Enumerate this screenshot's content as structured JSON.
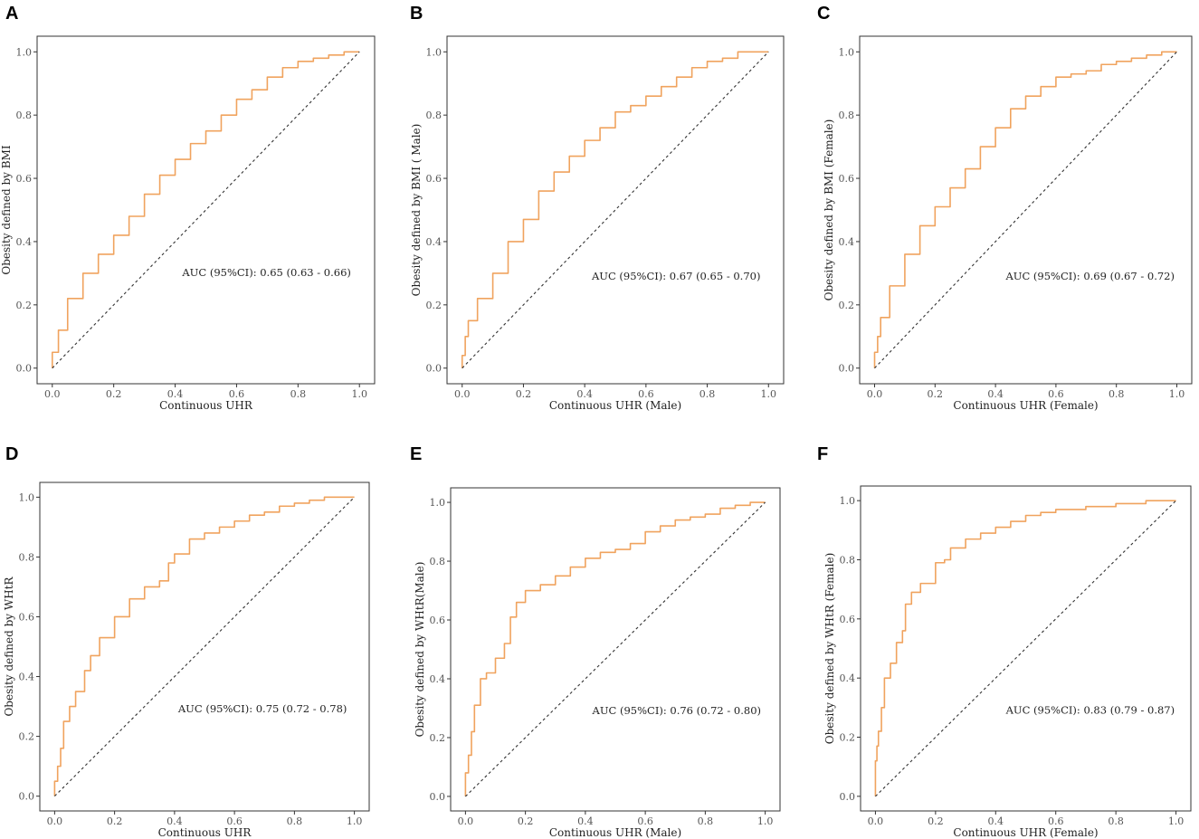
{
  "colors": {
    "roc": "#F0A35E",
    "diagonal": "#333333",
    "frame": "#333333"
  },
  "chart_data": [
    {
      "panel": "A",
      "type": "line",
      "xlabel": "Continuous UHR",
      "ylabel": "Obesity defined by BMI",
      "xlim": [
        0,
        1
      ],
      "ylim": [
        0,
        1
      ],
      "x_ticks": [
        "0.0",
        "0.2",
        "0.4",
        "0.6",
        "0.8",
        "1.0"
      ],
      "y_ticks": [
        "0.0",
        "0.2",
        "0.4",
        "0.6",
        "0.8",
        "1.0"
      ],
      "annotation": "AUC (95%CI): 0.65 (0.63 - 0.66)",
      "series": [
        {
          "name": "ROC",
          "x": [
            0,
            0.02,
            0.05,
            0.1,
            0.15,
            0.2,
            0.25,
            0.3,
            0.35,
            0.4,
            0.45,
            0.5,
            0.55,
            0.6,
            0.65,
            0.7,
            0.75,
            0.8,
            0.85,
            0.9,
            0.95,
            1.0
          ],
          "y": [
            0,
            0.05,
            0.12,
            0.22,
            0.3,
            0.36,
            0.42,
            0.48,
            0.55,
            0.61,
            0.66,
            0.71,
            0.75,
            0.8,
            0.85,
            0.88,
            0.92,
            0.95,
            0.97,
            0.98,
            0.99,
            1.0
          ]
        },
        {
          "name": "reference",
          "x": [
            0,
            1
          ],
          "y": [
            0,
            1
          ]
        }
      ]
    },
    {
      "panel": "B",
      "type": "line",
      "xlabel": "Continuous UHR (Male)",
      "ylabel": "Obesity defined by BMI ( Male)",
      "xlim": [
        0,
        1
      ],
      "ylim": [
        0,
        1
      ],
      "x_ticks": [
        "0.0",
        "0.2",
        "0.4",
        "0.6",
        "0.8",
        "1.0"
      ],
      "y_ticks": [
        "0.0",
        "0.2",
        "0.4",
        "0.6",
        "0.8",
        "1.0"
      ],
      "annotation": "AUC (95%CI): 0.67 (0.65 - 0.70)",
      "series": [
        {
          "name": "ROC",
          "x": [
            0,
            0.01,
            0.02,
            0.05,
            0.1,
            0.15,
            0.2,
            0.25,
            0.3,
            0.35,
            0.4,
            0.45,
            0.5,
            0.55,
            0.6,
            0.65,
            0.7,
            0.75,
            0.8,
            0.85,
            0.9,
            0.95,
            1.0
          ],
          "y": [
            0,
            0.04,
            0.1,
            0.15,
            0.22,
            0.3,
            0.4,
            0.47,
            0.56,
            0.62,
            0.67,
            0.72,
            0.76,
            0.81,
            0.83,
            0.86,
            0.89,
            0.92,
            0.95,
            0.97,
            0.98,
            1.0,
            1.0
          ]
        },
        {
          "name": "reference",
          "x": [
            0,
            1
          ],
          "y": [
            0,
            1
          ]
        }
      ]
    },
    {
      "panel": "C",
      "type": "line",
      "xlabel": "Continuous UHR (Female)",
      "ylabel": "Obesity defined by BMI (Female)",
      "xlim": [
        0,
        1
      ],
      "ylim": [
        0,
        1
      ],
      "x_ticks": [
        "0.0",
        "0.2",
        "0.4",
        "0.6",
        "0.8",
        "1.0"
      ],
      "y_ticks": [
        "0.0",
        "0.2",
        "0.4",
        "0.6",
        "0.8",
        "1.0"
      ],
      "annotation": "AUC (95%CI): 0.69 (0.67 - 0.72)",
      "series": [
        {
          "name": "ROC",
          "x": [
            0,
            0.01,
            0.02,
            0.05,
            0.1,
            0.15,
            0.2,
            0.25,
            0.3,
            0.35,
            0.4,
            0.45,
            0.5,
            0.55,
            0.6,
            0.65,
            0.7,
            0.75,
            0.8,
            0.85,
            0.9,
            0.95,
            1.0
          ],
          "y": [
            0,
            0.05,
            0.1,
            0.16,
            0.26,
            0.36,
            0.45,
            0.51,
            0.57,
            0.63,
            0.7,
            0.76,
            0.82,
            0.86,
            0.89,
            0.92,
            0.93,
            0.94,
            0.96,
            0.97,
            0.98,
            0.99,
            1.0
          ]
        },
        {
          "name": "reference",
          "x": [
            0,
            1
          ],
          "y": [
            0,
            1
          ]
        }
      ]
    },
    {
      "panel": "D",
      "type": "line",
      "xlabel": "Continuous UHR",
      "ylabel": "Obesity defined by WHtR",
      "xlim": [
        0,
        1
      ],
      "ylim": [
        0,
        1
      ],
      "x_ticks": [
        "0.0",
        "0.2",
        "0.4",
        "0.6",
        "0.8",
        "1.0"
      ],
      "y_ticks": [
        "0.0",
        "0.2",
        "0.4",
        "0.6",
        "0.8",
        "1.0"
      ],
      "annotation": "AUC (95%CI): 0.75 (0.72 - 0.78)",
      "series": [
        {
          "name": "ROC",
          "x": [
            0,
            0.01,
            0.02,
            0.03,
            0.05,
            0.07,
            0.1,
            0.12,
            0.15,
            0.2,
            0.25,
            0.3,
            0.35,
            0.38,
            0.4,
            0.45,
            0.5,
            0.55,
            0.6,
            0.65,
            0.7,
            0.75,
            0.8,
            0.85,
            0.9,
            0.95,
            1.0
          ],
          "y": [
            0,
            0.05,
            0.1,
            0.16,
            0.25,
            0.3,
            0.35,
            0.42,
            0.47,
            0.53,
            0.6,
            0.66,
            0.7,
            0.72,
            0.78,
            0.81,
            0.86,
            0.88,
            0.9,
            0.92,
            0.94,
            0.95,
            0.97,
            0.98,
            0.99,
            1.0,
            1.0
          ]
        },
        {
          "name": "reference",
          "x": [
            0,
            1
          ],
          "y": [
            0,
            1
          ]
        }
      ]
    },
    {
      "panel": "E",
      "type": "line",
      "xlabel": "Continuous UHR (Male)",
      "ylabel": "Obesity defined by WHtR(Male)",
      "xlim": [
        0,
        1
      ],
      "ylim": [
        0,
        1
      ],
      "x_ticks": [
        "0.0",
        "0.2",
        "0.4",
        "0.6",
        "0.8",
        "1.0"
      ],
      "y_ticks": [
        "0.0",
        "0.2",
        "0.4",
        "0.6",
        "0.8",
        "1.0"
      ],
      "annotation": "AUC (95%CI): 0.76 (0.72 - 0.80)",
      "series": [
        {
          "name": "ROC",
          "x": [
            0,
            0.01,
            0.02,
            0.03,
            0.05,
            0.07,
            0.1,
            0.13,
            0.15,
            0.17,
            0.2,
            0.25,
            0.3,
            0.35,
            0.4,
            0.45,
            0.5,
            0.55,
            0.6,
            0.65,
            0.7,
            0.75,
            0.8,
            0.85,
            0.9,
            0.95,
            1.0
          ],
          "y": [
            0,
            0.08,
            0.14,
            0.22,
            0.31,
            0.4,
            0.42,
            0.47,
            0.52,
            0.61,
            0.66,
            0.7,
            0.72,
            0.75,
            0.78,
            0.81,
            0.83,
            0.84,
            0.86,
            0.9,
            0.92,
            0.94,
            0.95,
            0.96,
            0.98,
            0.99,
            1.0
          ]
        },
        {
          "name": "reference",
          "x": [
            0,
            1
          ],
          "y": [
            0,
            1
          ]
        }
      ]
    },
    {
      "panel": "F",
      "type": "line",
      "xlabel": "Continuous UHR (Female)",
      "ylabel": "Obesity defined by WHtR (Female)",
      "xlim": [
        0,
        1
      ],
      "ylim": [
        0,
        1
      ],
      "x_ticks": [
        "0.0",
        "0.2",
        "0.4",
        "0.6",
        "0.8",
        "1.0"
      ],
      "y_ticks": [
        "0.0",
        "0.2",
        "0.4",
        "0.6",
        "0.8",
        "1.0"
      ],
      "annotation": "AUC (95%CI): 0.83 (0.79 - 0.87)",
      "series": [
        {
          "name": "ROC",
          "x": [
            0,
            0.005,
            0.01,
            0.02,
            0.03,
            0.05,
            0.07,
            0.09,
            0.1,
            0.12,
            0.15,
            0.2,
            0.23,
            0.25,
            0.3,
            0.35,
            0.4,
            0.45,
            0.5,
            0.55,
            0.6,
            0.65,
            0.7,
            0.8,
            0.9,
            0.95,
            1.0
          ],
          "y": [
            0,
            0.12,
            0.17,
            0.22,
            0.3,
            0.4,
            0.45,
            0.52,
            0.56,
            0.65,
            0.69,
            0.72,
            0.79,
            0.8,
            0.84,
            0.87,
            0.89,
            0.91,
            0.93,
            0.95,
            0.96,
            0.97,
            0.97,
            0.98,
            0.99,
            1.0,
            1.0
          ]
        },
        {
          "name": "reference",
          "x": [
            0,
            1
          ],
          "y": [
            0,
            1
          ]
        }
      ]
    }
  ]
}
